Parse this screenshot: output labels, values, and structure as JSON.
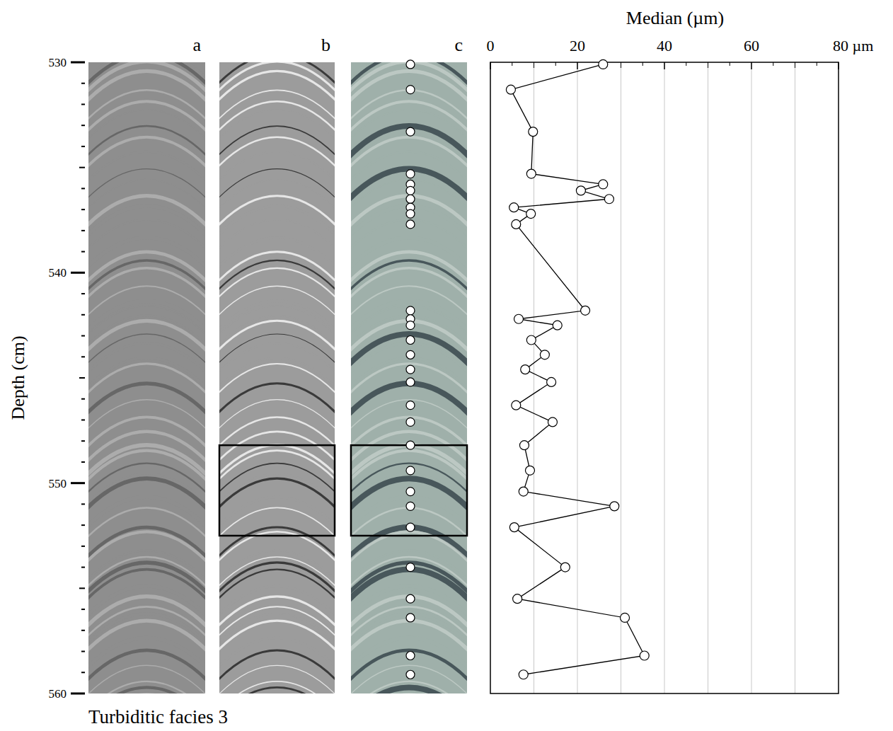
{
  "chart_data": {
    "type": "line",
    "title": "Median (µm)",
    "y_label": "Depth (cm)",
    "caption": "Turbiditic facies 3",
    "panel_labels": [
      "a",
      "b",
      "c"
    ],
    "x": [
      25.9,
      4.7,
      9.8,
      9.4,
      25.9,
      20.8,
      27.3,
      5.4,
      9.3,
      5.9,
      21.8,
      6.5,
      15.4,
      9.4,
      12.5,
      8.0,
      14.0,
      5.9,
      14.3,
      7.8,
      9.1,
      7.6,
      28.5,
      5.5,
      17.2,
      6.2,
      30.9,
      35.4,
      7.6
    ],
    "values": [
      530.1,
      531.3,
      533.3,
      535.3,
      535.8,
      536.1,
      536.5,
      536.9,
      537.2,
      537.7,
      541.8,
      542.2,
      542.5,
      543.2,
      543.9,
      544.6,
      545.2,
      546.3,
      547.1,
      548.2,
      549.4,
      550.4,
      551.1,
      552.1,
      554.0,
      555.5,
      556.4,
      558.2,
      559.1
    ],
    "xlim": [
      0,
      80
    ],
    "xticks": [
      0,
      20,
      40,
      60,
      {
        "value": 80,
        "label": "80 µm"
      }
    ],
    "ylim": [
      560,
      530
    ],
    "yticks": [
      530,
      540,
      550,
      560
    ],
    "core_box_depths": [
      548.2,
      552.5
    ],
    "grid": true,
    "marker": "circle",
    "line_style": "solid"
  }
}
